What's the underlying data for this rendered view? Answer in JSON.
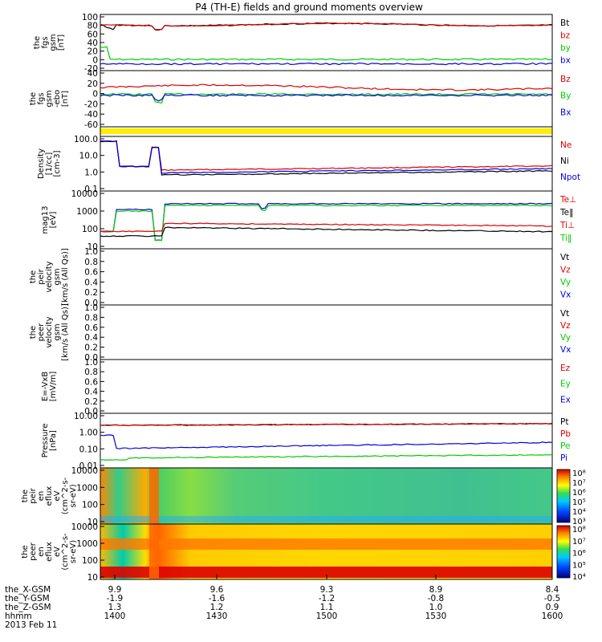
{
  "title": "P4 (TH-E) fields and ground moments overview",
  "colors": {
    "black": "#000000",
    "red": "#dd0000",
    "green": "#00cc00",
    "blue": "#0000dd",
    "yellow": "#ffee00"
  },
  "panels": [
    {
      "key": "fgs_gsm",
      "ylabel": [
        "the",
        "fgs",
        "gsm",
        "[nT]"
      ],
      "ticks": [
        "100",
        "80",
        "60",
        "40",
        "20",
        "0",
        "-20"
      ],
      "ylim": [
        -20,
        100
      ],
      "legend": [
        {
          "text": "Bt",
          "color": "black"
        },
        {
          "text": "bz",
          "color": "red"
        },
        {
          "text": "by",
          "color": "green"
        },
        {
          "text": "bx",
          "color": "blue"
        }
      ]
    },
    {
      "key": "fgs_gse",
      "ylabel": [
        "the",
        "fgs",
        "gsm",
        "-ebo",
        "[nT]"
      ],
      "ticks": [
        "40",
        "20",
        "0",
        "-20",
        "-40",
        "-60"
      ],
      "ylim": [
        -65,
        42
      ],
      "legend": [
        {
          "text": "Bz",
          "color": "red"
        },
        {
          "text": "By",
          "color": "green"
        },
        {
          "text": "Bx",
          "color": "blue"
        }
      ]
    },
    {
      "key": "bar",
      "ylabel": [],
      "ticks": [],
      "legend": []
    },
    {
      "key": "density",
      "ylabel": [
        "Density",
        "[1/cc]",
        "[cm-3]"
      ],
      "ticks": [
        "100.0",
        "10.0",
        "1.0",
        "0.1"
      ],
      "log": true,
      "legend": [
        {
          "text": "Ne",
          "color": "red"
        },
        {
          "text": "Ni",
          "color": "black"
        },
        {
          "text": "Npot",
          "color": "blue"
        }
      ]
    },
    {
      "key": "temp",
      "ylabel": [
        "mag13",
        "[eV]"
      ],
      "ticks": [
        "10000",
        "1000",
        "100",
        "10"
      ],
      "log": true,
      "legend": [
        {
          "text": "Te⊥",
          "color": "red"
        },
        {
          "text": "Te‖",
          "color": "black"
        },
        {
          "text": "Ti⊥",
          "color": "red"
        },
        {
          "text": "Ti‖",
          "color": "green"
        }
      ]
    },
    {
      "key": "vel1",
      "ylabel": [
        "the",
        "peir",
        "velocity",
        "gsm",
        "[km/s (All Qs)]"
      ],
      "ticks": [
        "1.0",
        "0.8",
        "0.6",
        "0.4",
        "0.2",
        "0.0"
      ],
      "legend": [
        {
          "text": "Vt",
          "color": "black"
        },
        {
          "text": "Vz",
          "color": "red"
        },
        {
          "text": "Vy",
          "color": "green"
        },
        {
          "text": "Vx",
          "color": "blue"
        }
      ]
    },
    {
      "key": "vel2",
      "ylabel": [
        "the",
        "peer",
        "velocity",
        "gsm",
        "[km/s (All Qs)]"
      ],
      "ticks": [
        "1.0",
        "0.8",
        "0.6",
        "0.4",
        "0.2",
        "0.0"
      ],
      "legend": [
        {
          "text": "Vt",
          "color": "black"
        },
        {
          "text": "Vz",
          "color": "red"
        },
        {
          "text": "Vy",
          "color": "green"
        },
        {
          "text": "Vx",
          "color": "blue"
        }
      ]
    },
    {
      "key": "efield",
      "ylabel": [
        "E=-VxB",
        "[mV/m]"
      ],
      "ticks": [
        "1.0",
        "0.8",
        "0.6",
        "0.4",
        "0.2",
        "0.0"
      ],
      "legend": [
        {
          "text": "Ez",
          "color": "red"
        },
        {
          "text": "Ey",
          "color": "green"
        },
        {
          "text": "Ex",
          "color": "blue"
        }
      ]
    },
    {
      "key": "pressure",
      "ylabel": [
        "Pressure",
        "[nPa]"
      ],
      "ticks": [
        "10.00",
        "1.00",
        "0.10",
        "0.01"
      ],
      "log": true,
      "legend": [
        {
          "text": "Pt",
          "color": "black"
        },
        {
          "text": "Pb",
          "color": "red"
        },
        {
          "text": "Pe",
          "color": "green"
        },
        {
          "text": "Pi",
          "color": "blue"
        }
      ]
    },
    {
      "key": "ion_spec",
      "ylabel": [
        "the",
        "peir",
        "en",
        "eflux",
        "eV",
        "(cm^2-s-",
        "sr-eV)"
      ],
      "ticks": [
        "10000",
        "1000",
        "100",
        "10"
      ],
      "cbar": [
        "10⁸",
        "10⁷",
        "10⁶",
        "10⁵",
        "10⁴",
        "10³"
      ]
    },
    {
      "key": "ele_spec",
      "ylabel": [
        "the",
        "peer",
        "en",
        "eflux",
        "eV",
        "(cm^2-s-",
        "sr-eV)"
      ],
      "ticks": [
        "10000",
        "1000",
        "100",
        "10"
      ],
      "cbar": [
        "10⁸",
        "10⁷",
        "10⁶",
        "10⁵",
        "10⁴"
      ]
    }
  ],
  "xaxis": {
    "rows": [
      {
        "label": "the_X-GSM",
        "values": [
          "9.9",
          "9.6",
          "9.3",
          "8.9",
          "8.4"
        ]
      },
      {
        "label": "the_Y-GSM",
        "values": [
          "-1.9",
          "-1.6",
          "-1.2",
          "-0.8",
          "-0.5"
        ]
      },
      {
        "label": "the_Z-GSM",
        "values": [
          "1.3",
          "1.2",
          "1.1",
          "1.0",
          "0.9"
        ]
      },
      {
        "label": "hhmm",
        "values": [
          "1400",
          "1430",
          "1500",
          "1530",
          "1600"
        ]
      }
    ],
    "date": "2013 Feb 11"
  },
  "chart_data": {
    "type": "line",
    "title": "P4 (TH-E) fields and ground moments overview",
    "x": [
      "1400",
      "1430",
      "1500",
      "1530",
      "1600"
    ],
    "series": [
      {
        "name": "Bt",
        "values": [
          75,
          72,
          78,
          80,
          78
        ]
      },
      {
        "name": "bz",
        "values": [
          75,
          72,
          78,
          80,
          78
        ]
      },
      {
        "name": "by",
        "values": [
          5,
          -3,
          -2,
          -3,
          -2
        ]
      },
      {
        "name": "bx",
        "values": [
          -5,
          -10,
          -8,
          -9,
          -9
        ]
      },
      {
        "name": "Ne",
        "values": [
          30,
          1.2,
          1.3,
          1.6,
          1.9
        ]
      },
      {
        "name": "Ni",
        "values": [
          20,
          0.9,
          1.0,
          1.2,
          1.4
        ]
      },
      {
        "name": "Npot",
        "values": [
          60,
          0.8,
          1.1,
          1.3,
          1.6
        ]
      },
      {
        "name": "Ti‖",
        "values": [
          100,
          2000,
          2200,
          2200,
          2300
        ]
      },
      {
        "name": "Te⊥",
        "values": [
          60,
          250,
          230,
          220,
          200
        ]
      },
      {
        "name": "Pt",
        "values": [
          3.0,
          3.0,
          3.2,
          3.1,
          3.2
        ]
      },
      {
        "name": "Pe",
        "values": [
          0.04,
          0.03,
          0.03,
          0.03,
          0.04
        ]
      },
      {
        "name": "Pi",
        "values": [
          0.2,
          0.13,
          0.14,
          0.18,
          0.22
        ]
      }
    ]
  }
}
